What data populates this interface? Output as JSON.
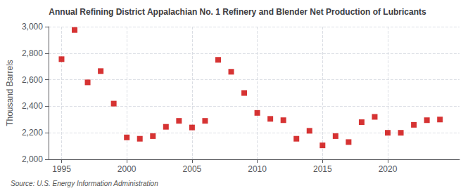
{
  "chart_data": {
    "type": "scatter",
    "title": "Annual Refining District Appalachian No. 1 Refinery and Blender Net Production of Lubricants",
    "ylabel": "Thousand Barrels",
    "source": "Source: U.S. Energy Information Administration",
    "color": "#cc0000",
    "marker": "square",
    "grid": true,
    "xlim": [
      1994.0,
      2025.5
    ],
    "xticks": [
      1995,
      2000,
      2005,
      2010,
      2015,
      2020
    ],
    "ylim": [
      2000,
      3000
    ],
    "yticks": [
      {
        "value": 2000,
        "label": "2,000"
      },
      {
        "value": 2200,
        "label": "2,200"
      },
      {
        "value": 2400,
        "label": "2,400"
      },
      {
        "value": 2600,
        "label": "2,600"
      },
      {
        "value": 2800,
        "label": "2,800"
      },
      {
        "value": 3000,
        "label": "3,000"
      }
    ],
    "x": [
      1995,
      1996,
      1997,
      1998,
      1999,
      2000,
      2001,
      2002,
      2003,
      2004,
      2005,
      2006,
      2007,
      2008,
      2009,
      2010,
      2011,
      2012,
      2013,
      2014,
      2015,
      2016,
      2017,
      2018,
      2019,
      2020,
      2021,
      2022,
      2023,
      2024
    ],
    "values": [
      2755,
      2975,
      2580,
      2665,
      2420,
      2165,
      2155,
      2175,
      2245,
      2290,
      2240,
      2290,
      2750,
      2660,
      2500,
      2350,
      2305,
      2295,
      2155,
      2215,
      2105,
      2175,
      2130,
      2280,
      2320,
      2200,
      2200,
      2260,
      2295,
      2300
    ]
  }
}
